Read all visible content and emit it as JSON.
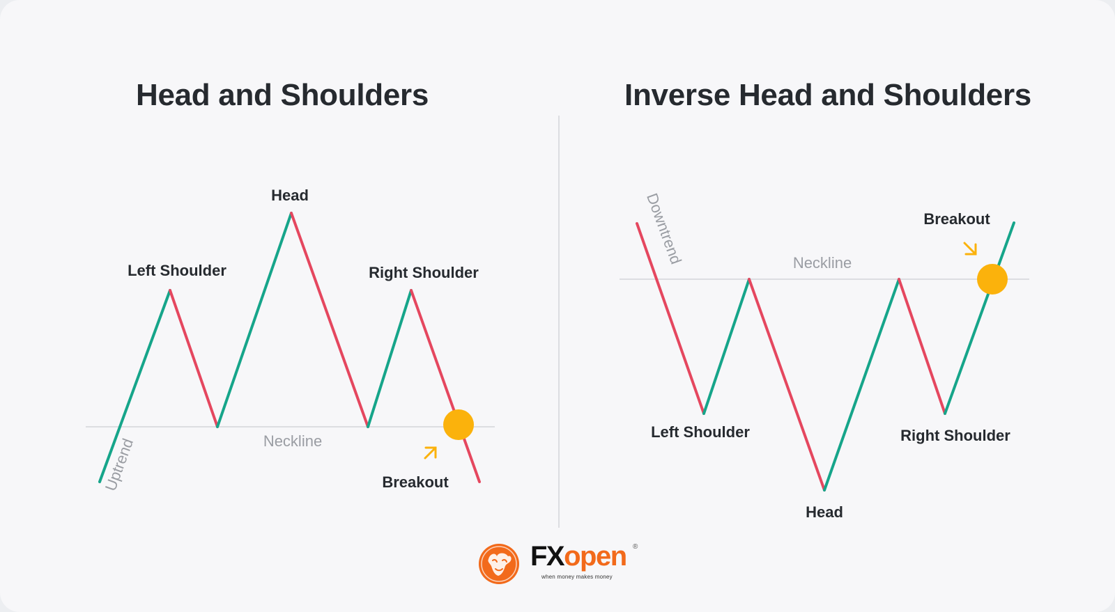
{
  "colors": {
    "up": "#16a58a",
    "down": "#e5475f",
    "neckline": "#dcdde1",
    "breakout_dot": "#fbb20c",
    "muted_text": "#9a9da3",
    "text": "#262a2f",
    "brand": "#f26a1b"
  },
  "left_panel": {
    "title": "Head and Shoulders",
    "labels": {
      "head": "Head",
      "left_shoulder": "Left Shoulder",
      "right_shoulder": "Right Shoulder",
      "neckline": "Neckline",
      "breakout": "Breakout",
      "trend": "Uptrend"
    }
  },
  "right_panel": {
    "title": "Inverse Head and Shoulders",
    "labels": {
      "head": "Head",
      "left_shoulder": "Left Shoulder",
      "right_shoulder": "Right Shoulder",
      "neckline": "Neckline",
      "breakout": "Breakout",
      "trend": "Downtrend"
    }
  },
  "logo": {
    "fx": "FX",
    "open": "open",
    "registered": "®",
    "tagline": "when money makes money",
    "icon": "bull-icon"
  }
}
